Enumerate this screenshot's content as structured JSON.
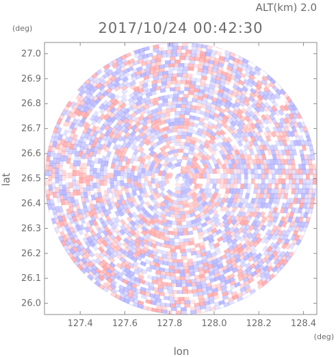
{
  "header": {
    "altitude_label": "ALT(km)  2.0",
    "timestamp": "2017/10/24 00:42:30"
  },
  "chart_data": {
    "type": "heatmap",
    "title": "2017/10/24 00:42:30",
    "xlabel": "lon",
    "ylabel": "lat",
    "x_unit": "(deg)",
    "y_unit": "(deg)",
    "xlim": [
      127.24,
      128.46
    ],
    "ylim": [
      25.955,
      27.045
    ],
    "x_ticks": [
      "127.4",
      "127.6",
      "127.8",
      "128.0",
      "128.2",
      "128.4"
    ],
    "y_ticks": [
      "26.0",
      "26.1",
      "26.2",
      "26.3",
      "26.4",
      "26.5",
      "26.6",
      "26.7",
      "26.8",
      "26.9",
      "27.0"
    ],
    "x_tick_values": [
      127.4,
      127.6,
      127.8,
      128.0,
      128.2,
      128.4
    ],
    "y_tick_values": [
      26.0,
      26.1,
      26.2,
      26.3,
      26.4,
      26.5,
      26.6,
      26.7,
      26.8,
      26.9,
      27.0
    ],
    "radar_center": {
      "lon": 127.85,
      "lat": 26.5
    },
    "radar_range_deg_lat": 0.545,
    "colors": {
      "positive": "#ff9a9a",
      "negative": "#a8a8ff",
      "neutral": "#ffffff"
    },
    "grid": false
  }
}
